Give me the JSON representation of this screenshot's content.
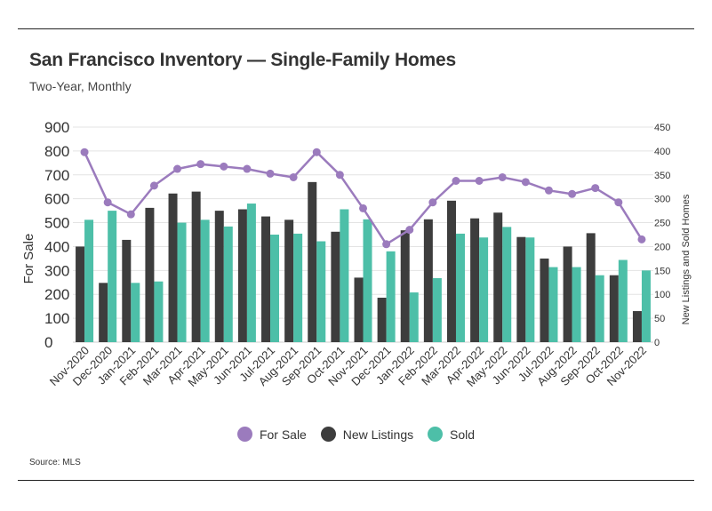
{
  "header": {
    "title": "San Francisco Inventory — Single-Family Homes",
    "subtitle": "Two-Year, Monthly"
  },
  "footer": {
    "source": "Source:  MLS"
  },
  "colors": {
    "for_sale": "#9b7bbd",
    "new_listings": "#3d3d3d",
    "sold": "#4dbfa8",
    "grid": "#e3e3e3"
  },
  "chart_data": {
    "type": "bar",
    "categories": [
      "Nov-2020",
      "Dec-2020",
      "Jan-2021",
      "Feb-2021",
      "Mar-2021",
      "Apr-2021",
      "May-2021",
      "Jun-2021",
      "Jul-2021",
      "Aug-2021",
      "Sep-2021",
      "Oct-2021",
      "Nov-2021",
      "Dec-2021",
      "Jan-2022",
      "Feb-2022",
      "Mar-2022",
      "Apr-2022",
      "May-2022",
      "Jun-2022",
      "Jul-2022",
      "Aug-2022",
      "Sep-2022",
      "Oct-2022",
      "Nov-2022"
    ],
    "series": [
      {
        "name": "For Sale",
        "type": "line",
        "axis": "left",
        "values": [
          795,
          585,
          535,
          655,
          725,
          745,
          735,
          725,
          705,
          690,
          795,
          700,
          560,
          410,
          470,
          585,
          675,
          675,
          690,
          670,
          635,
          620,
          645,
          585,
          430
        ]
      },
      {
        "name": "New Listings",
        "type": "bar",
        "axis": "right",
        "values": [
          200,
          124,
          214,
          281,
          311,
          315,
          275,
          278,
          263,
          256,
          335,
          231,
          135,
          93,
          234,
          257,
          296,
          259,
          271,
          220,
          175,
          200,
          228,
          140,
          65
        ]
      },
      {
        "name": "Sold",
        "type": "bar",
        "axis": "right",
        "values": [
          256,
          275,
          124,
          127,
          250,
          256,
          242,
          290,
          225,
          227,
          211,
          278,
          257,
          190,
          104,
          134,
          227,
          219,
          241,
          219,
          157,
          157,
          140,
          172,
          150
        ]
      }
    ],
    "ylabel": "For Sale",
    "y2label": "New Listings and Sold Homes",
    "ylim": [
      0,
      900
    ],
    "y2lim": [
      0,
      450
    ],
    "yticks": [
      "0",
      "100",
      "200",
      "300",
      "400",
      "500",
      "600",
      "700",
      "800",
      "900"
    ],
    "y2ticks": [
      "0",
      "50",
      "100",
      "150",
      "200",
      "250",
      "300",
      "350",
      "400",
      "450"
    ],
    "grid": true,
    "legend_position": "bottom"
  }
}
